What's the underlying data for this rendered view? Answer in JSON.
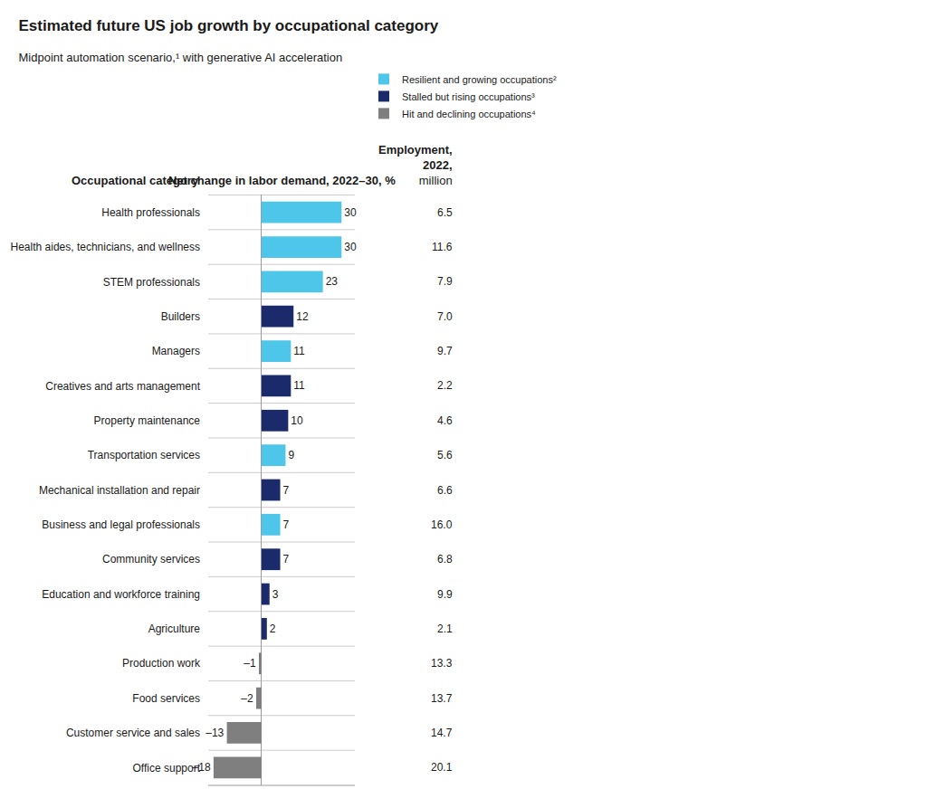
{
  "chart_data": {
    "type": "bar",
    "orientation": "horizontal",
    "title": "Estimated future US job growth by occupational category",
    "subtitle": "Midpoint automation scenario,¹ with generative AI acceleration",
    "annotations": [
      "Occupational category",
      "Net change in labor demand, 2022–30, %",
      "Employment,",
      "2022,",
      "million"
    ],
    "categories": [
      "Health professionals",
      "Health aides, technicians, and wellness",
      "STEM professionals",
      "Builders",
      "Managers",
      "Creatives and arts management",
      "Property maintenance",
      "Transportation services",
      "Mechanical installation and repair",
      "Business and legal professionals",
      "Community services",
      "Education and workforce training",
      "Agriculture",
      "Production work",
      "Food services",
      "Customer service and sales",
      "Office support"
    ],
    "series": [
      {
        "name": "Resilient and growing occupations²",
        "color": "#4DC6E9",
        "values": [
          30,
          30,
          23,
          null,
          11,
          null,
          null,
          9,
          null,
          7,
          null,
          null,
          null,
          null,
          null,
          null,
          null
        ],
        "value_labels": [
          "30",
          "30",
          "23",
          null,
          "11",
          null,
          null,
          "9",
          null,
          "7",
          null,
          null,
          null,
          null,
          null,
          null,
          null
        ]
      },
      {
        "name": "Stalled but rising occupations³",
        "color": "#1B2A6B",
        "values": [
          null,
          null,
          null,
          12,
          null,
          11,
          10,
          null,
          7,
          null,
          7,
          3,
          2,
          null,
          null,
          null,
          null
        ],
        "value_labels": [
          null,
          null,
          null,
          "12",
          null,
          "11",
          "10",
          null,
          "7",
          null,
          "7",
          "3",
          "2",
          null,
          null,
          null,
          null
        ]
      },
      {
        "name": "Hit and declining occupations⁴",
        "color": "#7F7F7F",
        "values": [
          null,
          null,
          null,
          null,
          null,
          null,
          null,
          null,
          null,
          null,
          null,
          null,
          null,
          -1,
          -2,
          -13,
          -18
        ],
        "value_labels": [
          null,
          null,
          null,
          null,
          null,
          null,
          null,
          null,
          null,
          null,
          null,
          null,
          null,
          "–1",
          "–2",
          "–13",
          "–18"
        ]
      }
    ],
    "employment": {
      "values": [
        6.5,
        11.6,
        7.9,
        7.0,
        9.7,
        2.2,
        4.6,
        5.6,
        6.6,
        16.0,
        6.8,
        9.9,
        2.1,
        13.3,
        13.7,
        14.7,
        20.1
      ],
      "value_labels": [
        "6.5",
        "11.6",
        "7.9",
        "7.0",
        "9.7",
        "2.2",
        "4.6",
        "5.6",
        "6.6",
        "16.0",
        "6.8",
        "9.9",
        "2.1",
        "13.3",
        "13.7",
        "14.7",
        "20.1"
      ]
    },
    "xlim": [
      -20,
      35
    ],
    "tick_labels": "y",
    "data_labels": true,
    "stacked": false,
    "grid": true,
    "legend": "top"
  }
}
